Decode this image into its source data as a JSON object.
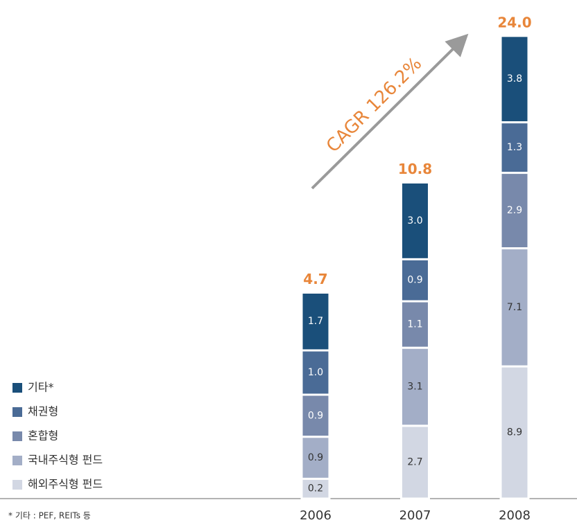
{
  "chart_data": {
    "type": "stacked-bar",
    "categories": [
      "2006",
      "2007",
      "2008"
    ],
    "series": [
      {
        "name": "해외주식형 펀드",
        "color": "#d2d7e3",
        "values": [
          0.2,
          2.7,
          8.9
        ],
        "value_labels": [
          "0.2",
          "2.7",
          "8.9"
        ]
      },
      {
        "name": "국내주식형 펀드",
        "color": "#a3aec7",
        "values": [
          0.9,
          3.1,
          7.1
        ],
        "value_labels": [
          "0.9",
          "3.1",
          "7.1"
        ]
      },
      {
        "name": "혼합형",
        "color": "#7889ab",
        "values": [
          0.9,
          1.1,
          2.9
        ],
        "value_labels": [
          "0.9",
          "1.1",
          "2.9"
        ]
      },
      {
        "name": "채권형",
        "color": "#4a6b96",
        "values": [
          1.0,
          0.9,
          1.3
        ],
        "value_labels": [
          "1.0",
          "0.9",
          "1.3"
        ]
      },
      {
        "name": "기타*",
        "color": "#1a4f7a",
        "values": [
          1.7,
          3.0,
          3.8
        ],
        "value_labels": [
          "1.7",
          "3.0",
          "3.8"
        ]
      }
    ],
    "totals": [
      4.7,
      10.8,
      24.0
    ],
    "total_labels": [
      "4.7",
      "10.8",
      "24.0"
    ],
    "annotation": "CAGR 126.2%",
    "footnote": "* 기타 : PEF, REITs 등"
  }
}
